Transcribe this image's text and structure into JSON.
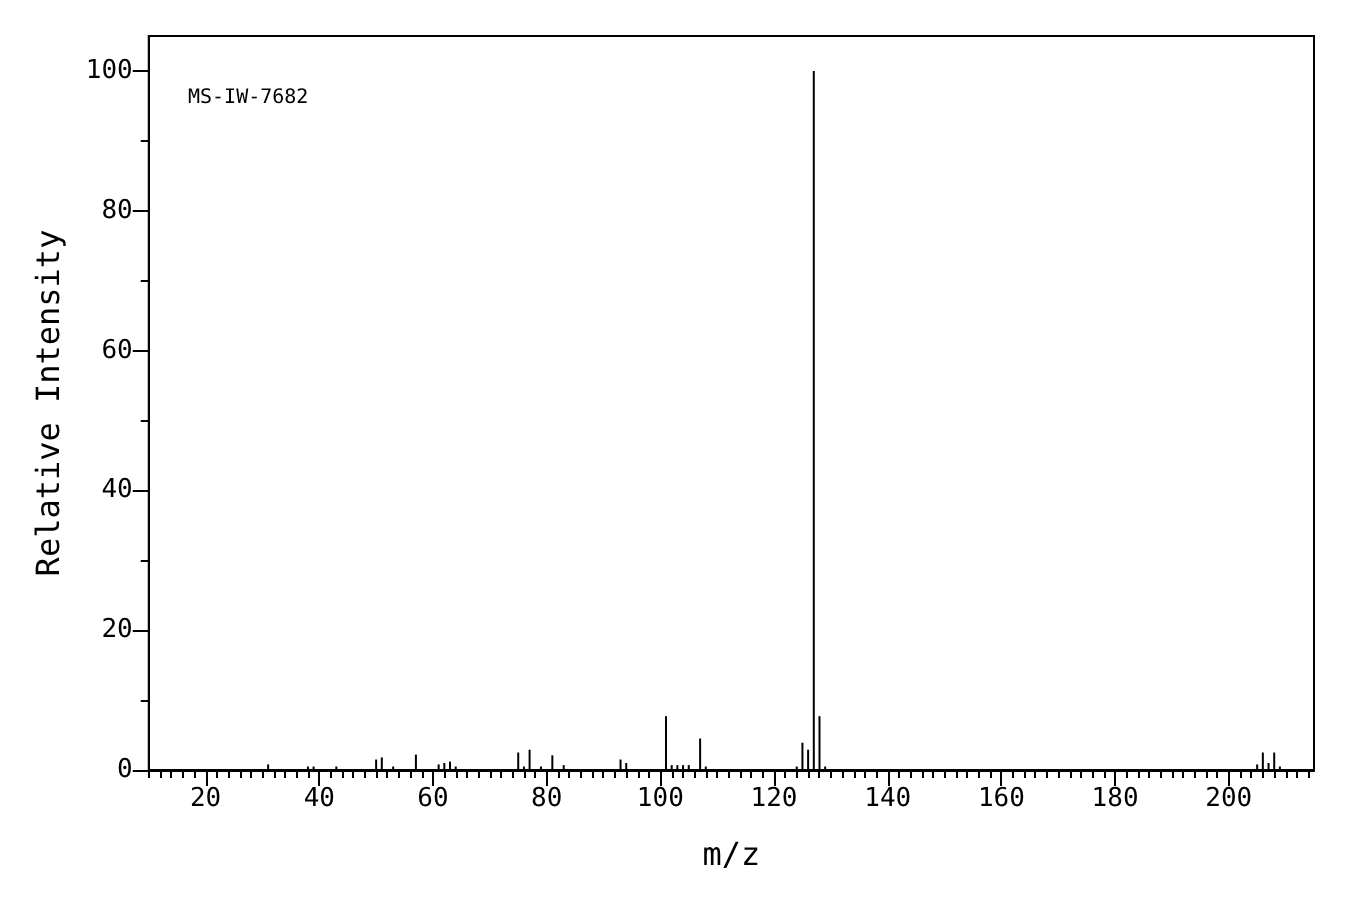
{
  "chart_data": {
    "type": "bar",
    "xlabel": "m/z",
    "ylabel": "Relative Intensity",
    "annotations": [
      "MS-IW-7682"
    ],
    "color": "#000000",
    "x": [
      31,
      38,
      39,
      43,
      50,
      51,
      53,
      57,
      61,
      62,
      63,
      64,
      75,
      76,
      77,
      79,
      81,
      83,
      93,
      94,
      101,
      102,
      103,
      104,
      105,
      107,
      108,
      124,
      125,
      126,
      127,
      128,
      129,
      141,
      205,
      206,
      207,
      208,
      209
    ],
    "values": [
      0.8,
      0.5,
      0.5,
      0.5,
      1.5,
      1.8,
      0.5,
      2.2,
      0.8,
      1,
      1.2,
      0.5,
      2.5,
      0.5,
      2.9,
      0.5,
      2.1,
      0.7,
      1.5,
      1,
      7.7,
      0.7,
      0.7,
      0.7,
      0.7,
      4.5,
      0.5,
      0.5,
      3.9,
      2.9,
      100,
      7.7,
      0.5,
      null,
      0.8,
      2.5,
      1,
      2.5,
      0.5
    ],
    "xlim": [
      10,
      215
    ],
    "ylim": [
      0,
      105
    ],
    "xticks": [
      {
        "value": 10,
        "label": null
      },
      {
        "value": 12,
        "label": null
      },
      {
        "value": 14,
        "label": null
      },
      {
        "value": 16,
        "label": null
      },
      {
        "value": 18,
        "label": null
      },
      20,
      {
        "value": 22,
        "label": null
      },
      {
        "value": 24,
        "label": null
      },
      {
        "value": 26,
        "label": null
      },
      {
        "value": 28,
        "label": null
      },
      {
        "value": 30,
        "label": null
      },
      {
        "value": 32,
        "label": null
      },
      {
        "value": 34,
        "label": null
      },
      {
        "value": 36,
        "label": null
      },
      {
        "value": 38,
        "label": null
      },
      40,
      {
        "value": 42,
        "label": null
      },
      {
        "value": 44,
        "label": null
      },
      {
        "value": 46,
        "label": null
      },
      {
        "value": 48,
        "label": null
      },
      {
        "value": 50,
        "label": null
      },
      {
        "value": 52,
        "label": null
      },
      {
        "value": 54,
        "label": null
      },
      {
        "value": 56,
        "label": null
      },
      {
        "value": 58,
        "label": null
      },
      60,
      {
        "value": 62,
        "label": null
      },
      {
        "value": 64,
        "label": null
      },
      {
        "value": 66,
        "label": null
      },
      {
        "value": 68,
        "label": null
      },
      {
        "value": 70,
        "label": null
      },
      {
        "value": 72,
        "label": null
      },
      {
        "value": 74,
        "label": null
      },
      {
        "value": 76,
        "label": null
      },
      {
        "value": 78,
        "label": null
      },
      80,
      {
        "value": 82,
        "label": null
      },
      {
        "value": 84,
        "label": null
      },
      {
        "value": 86,
        "label": null
      },
      {
        "value": 88,
        "label": null
      },
      {
        "value": 90,
        "label": null
      },
      {
        "value": 92,
        "label": null
      },
      {
        "value": 94,
        "label": null
      },
      {
        "value": 96,
        "label": null
      },
      {
        "value": 98,
        "label": null
      },
      100,
      {
        "value": 102,
        "label": null
      },
      {
        "value": 104,
        "label": null
      },
      {
        "value": 106,
        "label": null
      },
      {
        "value": 108,
        "label": null
      },
      {
        "value": 110,
        "label": null
      },
      {
        "value": 112,
        "label": null
      },
      {
        "value": 114,
        "label": null
      },
      {
        "value": 116,
        "label": null
      },
      {
        "value": 118,
        "label": null
      },
      120,
      {
        "value": 122,
        "label": null
      },
      {
        "value": 124,
        "label": null
      },
      {
        "value": 126,
        "label": null
      },
      {
        "value": 128,
        "label": null
      },
      {
        "value": 130,
        "label": null
      },
      {
        "value": 132,
        "label": null
      },
      {
        "value": 134,
        "label": null
      },
      {
        "value": 136,
        "label": null
      },
      {
        "value": 138,
        "label": null
      },
      140,
      {
        "value": 142,
        "label": null
      },
      {
        "value": 144,
        "label": null
      },
      {
        "value": 146,
        "label": null
      },
      {
        "value": 148,
        "label": null
      },
      {
        "value": 150,
        "label": null
      },
      {
        "value": 152,
        "label": null
      },
      {
        "value": 154,
        "label": null
      },
      {
        "value": 156,
        "label": null
      },
      {
        "value": 158,
        "label": null
      },
      160,
      {
        "value": 162,
        "label": null
      },
      {
        "value": 164,
        "label": null
      },
      {
        "value": 166,
        "label": null
      },
      {
        "value": 168,
        "label": null
      },
      {
        "value": 170,
        "label": null
      },
      {
        "value": 172,
        "label": null
      },
      {
        "value": 174,
        "label": null
      },
      {
        "value": 176,
        "label": null
      },
      {
        "value": 178,
        "label": null
      },
      180,
      {
        "value": 182,
        "label": null
      },
      {
        "value": 184,
        "label": null
      },
      {
        "value": 186,
        "label": null
      },
      {
        "value": 188,
        "label": null
      },
      {
        "value": 190,
        "label": null
      },
      {
        "value": 192,
        "label": null
      },
      {
        "value": 194,
        "label": null
      },
      {
        "value": 196,
        "label": null
      },
      {
        "value": 198,
        "label": null
      },
      200,
      {
        "value": 202,
        "label": null
      },
      {
        "value": 204,
        "label": null
      },
      {
        "value": 206,
        "label": null
      },
      {
        "value": 208,
        "label": null
      },
      {
        "value": 210,
        "label": null
      },
      {
        "value": 212,
        "label": null
      },
      {
        "value": 214,
        "label": null
      }
    ],
    "yticks": [
      0,
      {
        "value": 10,
        "label": null
      },
      20,
      {
        "value": 30,
        "label": null
      },
      40,
      {
        "value": 50,
        "label": null
      },
      60,
      {
        "value": 70,
        "label": null
      },
      80,
      {
        "value": 90,
        "label": null
      },
      100
    ],
    "grid": false
  }
}
